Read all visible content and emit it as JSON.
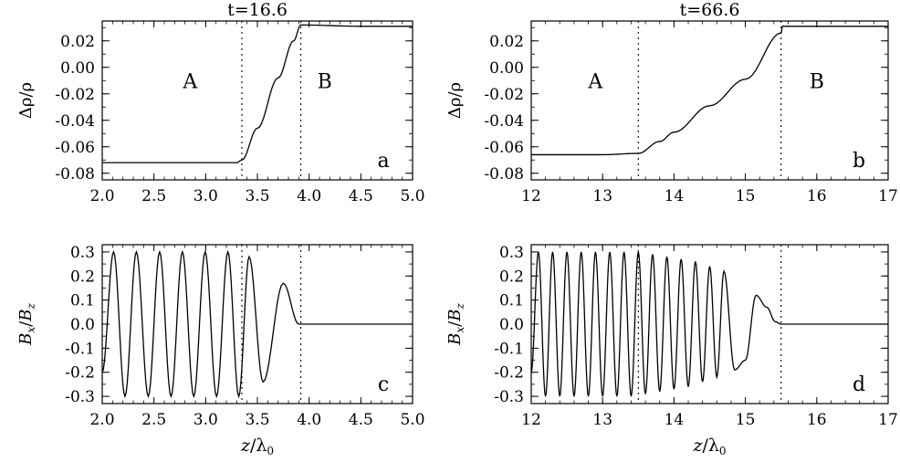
{
  "chart_data": [
    {
      "id": "a",
      "type": "line",
      "title": "t=16.6",
      "panel_label": "a",
      "ylabel": "Δρ/ρ",
      "xlabel": "",
      "xlim": [
        2.0,
        5.0
      ],
      "ylim": [
        -0.085,
        0.035
      ],
      "xticks": [
        "2.0",
        "2.5",
        "3.0",
        "3.5",
        "4.0",
        "4.5",
        "5.0"
      ],
      "yticks": [
        "0.02",
        "0.00",
        "-0.02",
        "-0.04",
        "-0.06",
        "-0.08"
      ],
      "region_labels": [
        {
          "text": "A",
          "x": 2.85,
          "y": -0.01
        },
        {
          "text": "B",
          "x": 4.15,
          "y": -0.01
        }
      ],
      "vlines": [
        3.35,
        3.92
      ],
      "series": [
        {
          "x": [
            2.0,
            2.5,
            3.0,
            3.3,
            3.35,
            3.5,
            3.7,
            3.85,
            3.92,
            4.5,
            5.0
          ],
          "y": [
            -0.072,
            -0.072,
            -0.072,
            -0.072,
            -0.07,
            -0.046,
            -0.008,
            0.02,
            0.032,
            0.031,
            0.031
          ]
        }
      ]
    },
    {
      "id": "b",
      "type": "line",
      "title": "t=66.6",
      "panel_label": "b",
      "ylabel": "Δρ/ρ",
      "xlabel": "",
      "xlim": [
        12,
        17
      ],
      "ylim": [
        -0.085,
        0.035
      ],
      "xticks": [
        "12",
        "13",
        "14",
        "15",
        "16",
        "17"
      ],
      "yticks": [
        "0.02",
        "0.00",
        "-0.02",
        "-0.04",
        "-0.06",
        "-0.08"
      ],
      "region_labels": [
        {
          "text": "A",
          "x": 12.9,
          "y": -0.01
        },
        {
          "text": "B",
          "x": 16.0,
          "y": -0.01
        }
      ],
      "vlines": [
        13.5,
        15.5
      ],
      "series": [
        {
          "x": [
            12,
            12.5,
            13.0,
            13.5,
            13.8,
            14.0,
            14.5,
            15.0,
            15.5,
            15.52,
            16.0,
            17.0
          ],
          "y": [
            -0.066,
            -0.066,
            -0.066,
            -0.065,
            -0.056,
            -0.049,
            -0.029,
            -0.009,
            0.026,
            0.031,
            0.031,
            0.031
          ]
        }
      ]
    },
    {
      "id": "c",
      "type": "line",
      "title": "",
      "panel_label": "c",
      "ylabel": "Bx/Bz",
      "xlabel": "z/λ0",
      "xlim": [
        2.0,
        5.0
      ],
      "ylim": [
        -0.33,
        0.33
      ],
      "xticks": [
        "2.0",
        "2.5",
        "3.0",
        "3.5",
        "4.0",
        "4.5",
        "5.0"
      ],
      "yticks": [
        "0.3",
        "0.2",
        "0.1",
        "0.0",
        "-0.1",
        "-0.2",
        "-0.3"
      ],
      "vlines": [
        3.35,
        3.92
      ],
      "series": [
        {
          "x": [
            2.0,
            2.11,
            2.22,
            2.33,
            2.445,
            2.555,
            2.665,
            2.775,
            2.885,
            2.995,
            3.105,
            3.215,
            3.32,
            3.42,
            3.555,
            3.75,
            3.9,
            3.92,
            5.0
          ],
          "y": [
            -0.2,
            0.3,
            -0.3,
            0.3,
            -0.3,
            0.3,
            -0.3,
            0.3,
            -0.3,
            0.3,
            -0.3,
            0.3,
            -0.3,
            0.28,
            -0.24,
            0.17,
            0.0,
            0.0,
            0.0
          ]
        }
      ]
    },
    {
      "id": "d",
      "type": "line",
      "title": "",
      "panel_label": "d",
      "ylabel": "Bx/Bz",
      "xlabel": "z/λ0",
      "xlim": [
        12,
        17
      ],
      "ylim": [
        -0.33,
        0.33
      ],
      "xticks": [
        "12",
        "13",
        "14",
        "15",
        "16",
        "17"
      ],
      "yticks": [
        "0.3",
        "0.2",
        "0.1",
        "0.0",
        "-0.1",
        "-0.2",
        "-0.3"
      ],
      "vlines": [
        13.5,
        15.5
      ],
      "series": [
        {
          "x": [
            12.0,
            12.1,
            12.2,
            12.3,
            12.4,
            12.5,
            12.6,
            12.7,
            12.8,
            12.9,
            13.0,
            13.1,
            13.2,
            13.3,
            13.4,
            13.5,
            13.6,
            13.7,
            13.8,
            13.9,
            14.0,
            14.1,
            14.2,
            14.3,
            14.4,
            14.5,
            14.6,
            14.7,
            14.85,
            15.0,
            15.15,
            15.3,
            15.42,
            15.5,
            17.0
          ],
          "y": [
            -0.2,
            0.3,
            -0.3,
            0.3,
            -0.3,
            0.3,
            -0.3,
            0.3,
            -0.3,
            0.3,
            -0.3,
            0.3,
            -0.3,
            0.3,
            -0.3,
            0.3,
            -0.29,
            0.29,
            -0.28,
            0.28,
            -0.27,
            0.27,
            -0.26,
            0.26,
            -0.24,
            0.24,
            -0.22,
            0.22,
            -0.19,
            -0.15,
            0.12,
            0.07,
            0.01,
            0.0,
            0.0
          ]
        }
      ]
    }
  ]
}
